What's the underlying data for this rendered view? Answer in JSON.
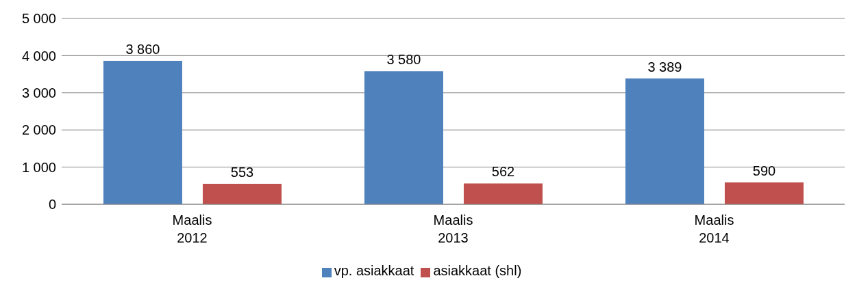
{
  "chart_data": {
    "type": "bar",
    "categories": [
      "Maalis\n2012",
      "Maalis\n2013",
      "Maalis\n2014"
    ],
    "series": [
      {
        "name": "vp. asiakkaat",
        "color": "#4f81bd",
        "values": [
          3860,
          3580,
          3389
        ],
        "value_labels": [
          "3 860",
          "3 580",
          "3 389"
        ]
      },
      {
        "name": "asiakkaat (shl)",
        "color": "#c0504d",
        "values": [
          553,
          562,
          590
        ],
        "value_labels": [
          "553",
          "562",
          "590"
        ]
      }
    ],
    "ylim": [
      0,
      5000
    ],
    "yticks": [
      {
        "value": 0,
        "label": "0"
      },
      {
        "value": 1000,
        "label": "1 000"
      },
      {
        "value": 2000,
        "label": "2 000"
      },
      {
        "value": 3000,
        "label": "3 000"
      },
      {
        "value": 4000,
        "label": "4 000"
      },
      {
        "value": 5000,
        "label": "5 000"
      }
    ],
    "grid": "y",
    "legend": "bottom"
  }
}
